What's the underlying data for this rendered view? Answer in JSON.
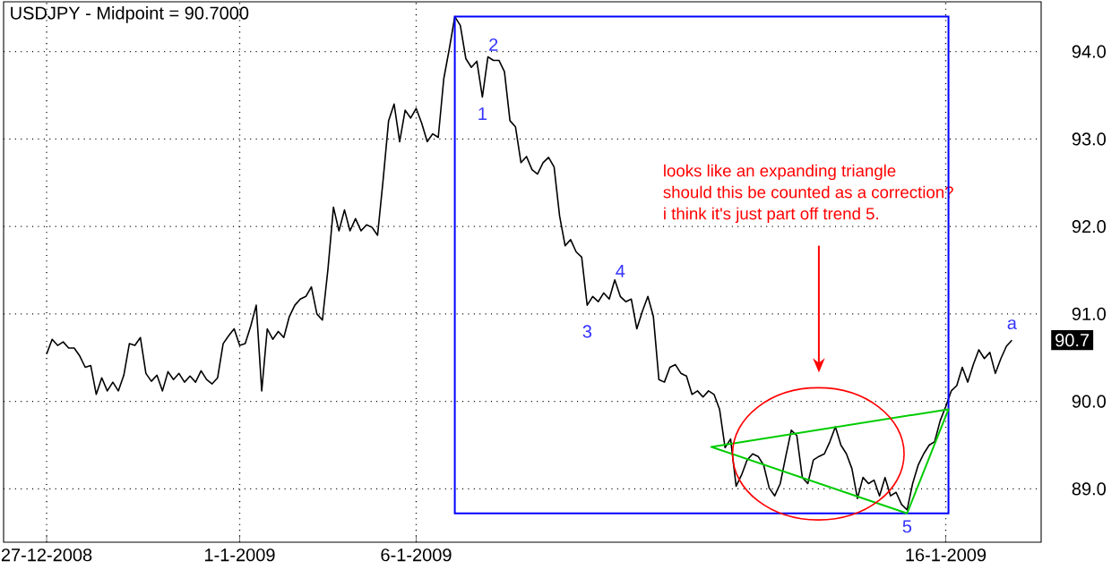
{
  "chart_data": {
    "type": "line",
    "title": "USDJPY - Midpoint = 90.7000",
    "categories": [
      "27-12-2008",
      null,
      null,
      null,
      null,
      null,
      null,
      null,
      null,
      null,
      null,
      null,
      null,
      null,
      null,
      null,
      null,
      null,
      null,
      null,
      null,
      null,
      null,
      null,
      null,
      null,
      null,
      null,
      null,
      null,
      null,
      null,
      null,
      null,
      null,
      "1-1-2009",
      null,
      null,
      null,
      null,
      null,
      null,
      null,
      null,
      null,
      null,
      null,
      null,
      null,
      null,
      null,
      null,
      null,
      null,
      null,
      null,
      null,
      null,
      null,
      null,
      null,
      null,
      null,
      null,
      null,
      null,
      null,
      "6-1-2009",
      null,
      null,
      null,
      null,
      null,
      null,
      null,
      null,
      null,
      null,
      null,
      null,
      null,
      null,
      null,
      null,
      null,
      null,
      null,
      null,
      null,
      null,
      null,
      null,
      null,
      null,
      null,
      null,
      null,
      null,
      null,
      null,
      null,
      null,
      null,
      null,
      null,
      null,
      null,
      null,
      null,
      null,
      null,
      null,
      null,
      null,
      null,
      null,
      null,
      null,
      null,
      null,
      null,
      null,
      null,
      null,
      null,
      null,
      null,
      null,
      null,
      null,
      null,
      null,
      null,
      null,
      null,
      null,
      null,
      null,
      null,
      null,
      null,
      null,
      null,
      null,
      null,
      null,
      null,
      null,
      null,
      null,
      null,
      null,
      null,
      null,
      null,
      null,
      null,
      null,
      null,
      null,
      null,
      null,
      null,
      "16-1-2009",
      null,
      null,
      null,
      null,
      null,
      null,
      null,
      null,
      null,
      null,
      null,
      null
    ],
    "ylim": [
      88.39,
      94.57
    ],
    "yticks": [
      {
        "value": 89,
        "label": "89.0"
      },
      {
        "value": 90,
        "label": "90.0"
      },
      {
        "value": 91,
        "label": "91.0"
      },
      {
        "value": 92,
        "label": "92.0"
      },
      {
        "value": 93,
        "label": "93.0"
      },
      {
        "value": 94,
        "label": "94.0"
      }
    ],
    "grid": true,
    "series": [
      {
        "color": "#000000",
        "values": [
          90.54,
          90.71,
          90.64,
          90.68,
          90.61,
          90.61,
          90.52,
          90.39,
          90.41,
          90.08,
          90.27,
          90.12,
          90.22,
          90.12,
          90.3,
          90.66,
          90.64,
          90.73,
          90.32,
          90.23,
          90.3,
          90.12,
          90.34,
          90.25,
          90.32,
          90.22,
          90.29,
          90.22,
          90.35,
          90.25,
          90.2,
          90.27,
          90.66,
          90.75,
          90.83,
          90.64,
          90.66,
          90.86,
          91.1,
          90.12,
          90.83,
          90.71,
          90.8,
          90.73,
          90.97,
          91.1,
          91.17,
          91.2,
          91.31,
          91.0,
          90.93,
          91.51,
          92.22,
          91.95,
          92.19,
          91.95,
          92.09,
          91.95,
          92.02,
          91.99,
          91.9,
          92.53,
          93.21,
          93.4,
          92.97,
          93.33,
          93.24,
          93.35,
          93.18,
          92.97,
          93.06,
          93.02,
          93.69,
          94.03,
          94.4,
          94.3,
          93.92,
          93.82,
          93.89,
          93.48,
          93.94,
          93.9,
          93.9,
          93.77,
          93.21,
          93.14,
          92.73,
          92.8,
          92.65,
          92.6,
          92.73,
          92.79,
          92.68,
          92.12,
          91.78,
          91.85,
          91.71,
          91.65,
          91.1,
          91.2,
          91.14,
          91.24,
          91.17,
          91.39,
          91.2,
          91.14,
          91.17,
          90.83,
          91.03,
          91.2,
          90.97,
          90.25,
          90.22,
          90.39,
          90.42,
          90.32,
          90.29,
          90.08,
          90.12,
          90.05,
          90.12,
          90.08,
          89.91,
          89.47,
          89.57,
          89.03,
          89.16,
          89.33,
          89.4,
          89.37,
          89.27,
          89.01,
          88.92,
          89.06,
          89.37,
          89.67,
          89.61,
          89.13,
          89.06,
          89.33,
          89.37,
          89.4,
          89.54,
          89.71,
          89.5,
          89.4,
          89.23,
          88.89,
          89.13,
          89.06,
          89.1,
          88.92,
          89.13,
          88.92,
          88.96,
          88.82,
          88.76,
          89.06,
          89.27,
          89.4,
          89.5,
          89.54,
          89.78,
          89.94,
          90.12,
          90.18,
          90.39,
          90.22,
          90.42,
          90.59,
          90.49,
          90.56,
          90.32,
          90.49,
          90.63,
          90.7
        ]
      }
    ],
    "annotations": [
      "1",
      "2",
      "3",
      "4",
      "5",
      "a",
      "90.7",
      "looks like an expanding triangle",
      "should this be counted as a correction?",
      "i think it's just part off trend 5."
    ]
  }
}
